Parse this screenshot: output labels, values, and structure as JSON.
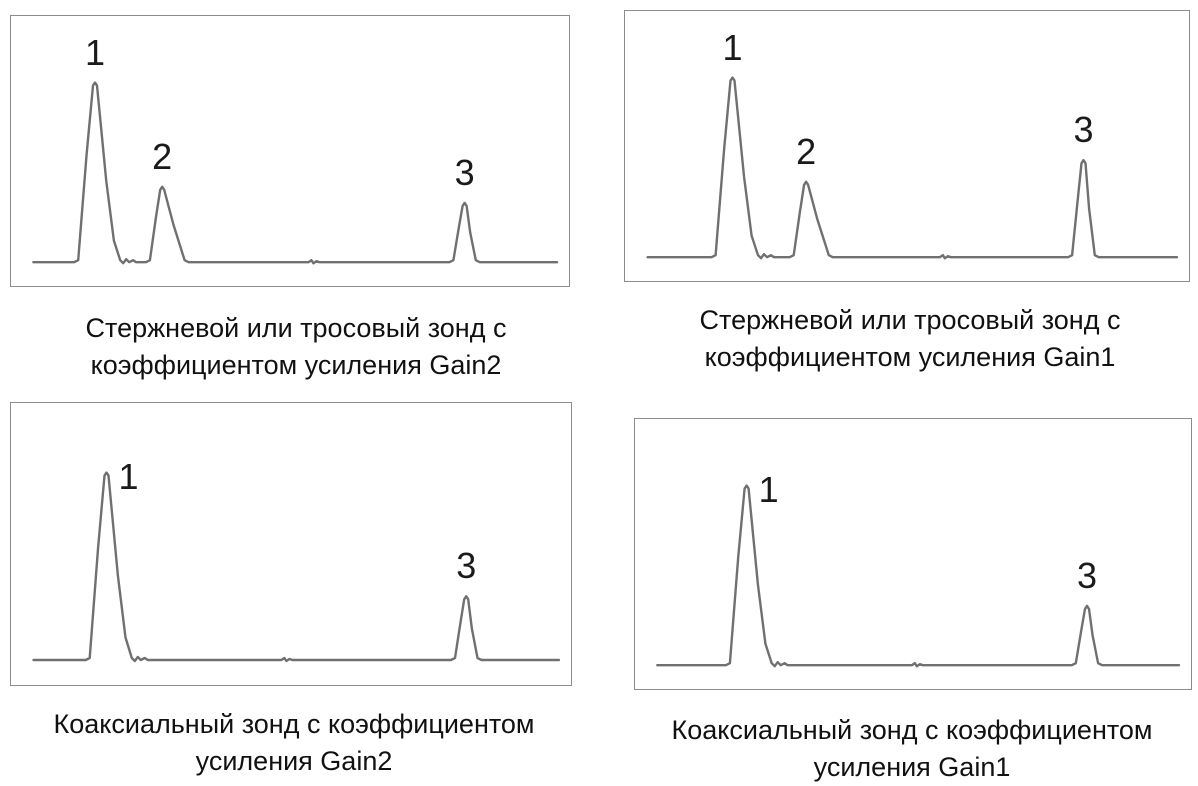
{
  "chart_data": [
    {
      "type": "line",
      "title": "",
      "xlabel": "",
      "ylabel": "",
      "grid": false,
      "peaks": [
        {
          "label": "1",
          "x": 0.15,
          "height": 1.0
        },
        {
          "label": "2",
          "x": 0.27,
          "height": 0.42
        },
        {
          "label": "3",
          "x": 0.81,
          "height": 0.33
        }
      ],
      "caption": [
        "Стержневой или тросовый зонд с",
        "коэффициентом усиления Gain2"
      ]
    },
    {
      "type": "line",
      "title": "",
      "xlabel": "",
      "ylabel": "",
      "grid": false,
      "peaks": [
        {
          "label": "1",
          "x": 0.19,
          "height": 1.0
        },
        {
          "label": "2",
          "x": 0.32,
          "height": 0.42
        },
        {
          "label": "3",
          "x": 0.81,
          "height": 0.54
        }
      ],
      "caption": [
        "Стержневой или тросовый зонд с",
        "коэффициентом усиления Gain1"
      ]
    },
    {
      "type": "line",
      "title": "",
      "xlabel": "",
      "ylabel": "",
      "grid": false,
      "peaks": [
        {
          "label": "1",
          "x": 0.17,
          "height": 1.0
        },
        {
          "label": "3",
          "x": 0.81,
          "height": 0.34
        }
      ],
      "caption": [
        "Коаксиальный зонд с коэффициентом",
        "усиления Gain2"
      ]
    },
    {
      "type": "line",
      "title": "",
      "xlabel": "",
      "ylabel": "",
      "grid": false,
      "peaks": [
        {
          "label": "1",
          "x": 0.2,
          "height": 1.0
        },
        {
          "label": "3",
          "x": 0.81,
          "height": 0.33
        }
      ],
      "caption": [
        "Коаксиальный зонд с коэффициентом",
        "усиления Gain1"
      ]
    }
  ],
  "colors": {
    "trace": "#707070",
    "frame": "#8c8c8c",
    "text": "#111111"
  }
}
